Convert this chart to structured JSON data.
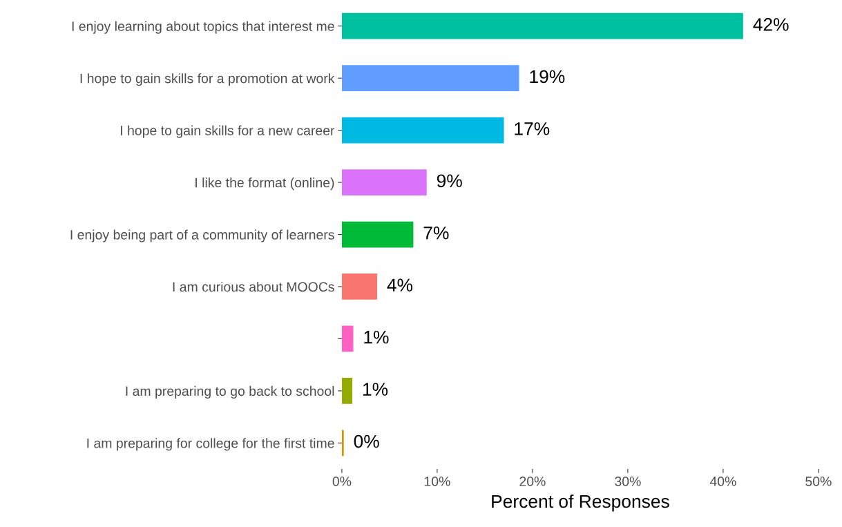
{
  "chart_data": {
    "type": "bar",
    "orientation": "horizontal",
    "xlabel": "Percent of Responses",
    "categories": [
      "I enjoy learning about topics that interest me",
      "I hope to gain skills for a promotion at work",
      "I hope to gain skills for a new career",
      "I like the format (online)",
      "I enjoy being part of a community of learners",
      "I am curious about MOOCs",
      null,
      "I am preparing to go back to school",
      "I am preparing for college for the first time"
    ],
    "values": [
      42.1,
      18.6,
      17.0,
      8.9,
      7.5,
      3.7,
      1.2,
      1.1,
      0.2
    ],
    "value_labels": [
      "42%",
      "19%",
      "17%",
      "9%",
      "7%",
      "4%",
      "1%",
      "1%",
      "0%"
    ],
    "colors": [
      "#00c19f",
      "#619cff",
      "#00b9e3",
      "#db72fb",
      "#00ba38",
      "#f8766d",
      "#ff61c3",
      "#93aa00",
      "#d39200"
    ],
    "xlim": [
      0,
      50
    ],
    "xticks": [
      {
        "value": 0,
        "label": "0%"
      },
      {
        "value": 10,
        "label": "10%"
      },
      {
        "value": 20,
        "label": "20%"
      },
      {
        "value": 30,
        "label": "30%"
      },
      {
        "value": 40,
        "label": "40%"
      },
      {
        "value": 50,
        "label": "50%"
      }
    ],
    "grid": false,
    "legend": false
  }
}
